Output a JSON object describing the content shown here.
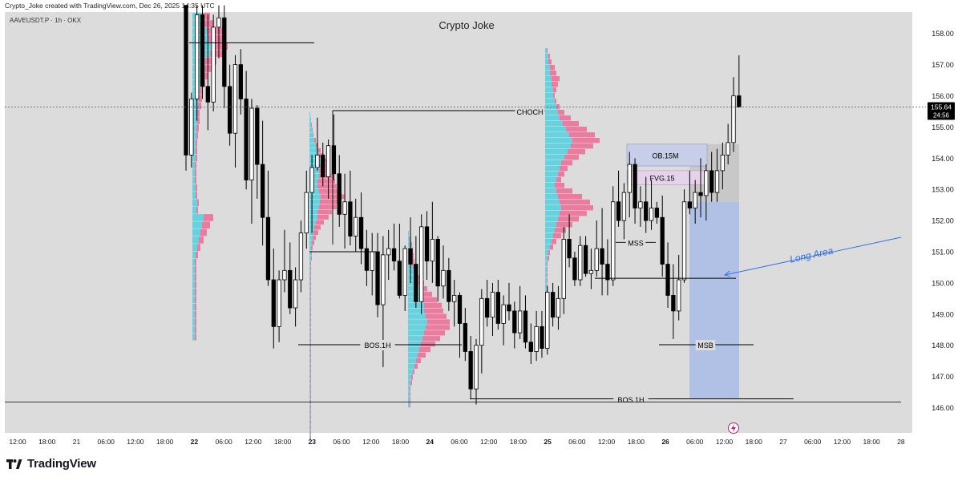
{
  "header": {
    "credit": "Crypto_Joke created with TradingView.com, Dec 26, 2025 14:35 UTC",
    "symbol": "AAVEUSDT.P · 1h · OKX",
    "watermark": "Crypto Joke"
  },
  "footer": {
    "brand": "TradingView"
  },
  "price_tag": {
    "price": "155.64",
    "countdown": "24:56"
  },
  "colors": {
    "bull": "#ffffff",
    "bear": "#000000",
    "chart_bg": "#dcdcdc",
    "vp_up": "#4fd0df",
    "vp_down": "#ef6b94",
    "long_area": "#a9bce8",
    "long_text": "#2f6fe0",
    "ob_box": "#c7cfe8",
    "fvg_box": "#e6d2ea"
  },
  "icons": [
    "tradingview-logo-icon",
    "lightning-icon"
  ],
  "chart_data": {
    "type": "candlestick",
    "title": "Crypto Joke",
    "symbol": "AAVEUSDT.P · 1h · OKX",
    "xlabel": "",
    "ylabel": "",
    "ylim": [
      145.2,
      158.6
    ],
    "y_ticks": [
      146,
      147,
      148,
      149,
      150,
      151,
      152,
      153,
      154,
      155,
      156,
      157,
      158
    ],
    "y_tick_labels": [
      "146.00",
      "147.00",
      "148.00",
      "149.00",
      "150.00",
      "151.00",
      "152.00",
      "153.00",
      "154.00",
      "155.00",
      "156.00",
      "157.00",
      "158.00"
    ],
    "x_tick_labels": [
      "12:00",
      "18:00",
      "21",
      "06:00",
      "12:00",
      "18:00",
      "22",
      "06:00",
      "12:00",
      "18:00",
      "23",
      "06:00",
      "12:00",
      "18:00",
      "24",
      "06:00",
      "12:00",
      "18:00",
      "25",
      "06:00",
      "12:00",
      "18:00",
      "26",
      "06:00",
      "12:00",
      "18:00",
      "27",
      "06:00",
      "12:00",
      "18:00",
      "28"
    ],
    "x_bold_labels": [
      "22",
      "23",
      "24",
      "25",
      "26"
    ],
    "last_price": 155.64,
    "candles": [
      [
        158.9,
        158.9,
        153.6,
        154.1
      ],
      [
        154.1,
        156.1,
        153.7,
        155.9
      ],
      [
        155.9,
        158.9,
        155.2,
        158.6
      ],
      [
        158.6,
        158.9,
        155.9,
        156.3
      ],
      [
        156.3,
        158.6,
        154.9,
        155.8
      ],
      [
        155.8,
        158.6,
        155.5,
        158.2
      ],
      [
        158.2,
        158.9,
        157.2,
        158.5
      ],
      [
        158.5,
        158.9,
        155.6,
        156.3
      ],
      [
        156.3,
        157.0,
        154.4,
        154.8
      ],
      [
        154.8,
        157.3,
        153.7,
        157.0
      ],
      [
        157.0,
        157.5,
        155.4,
        155.9
      ],
      [
        155.9,
        156.8,
        153.0,
        153.3
      ],
      [
        153.3,
        155.9,
        151.9,
        155.6
      ],
      [
        155.6,
        155.7,
        152.7,
        153.8
      ],
      [
        153.8,
        155.2,
        151.2,
        152.1
      ],
      [
        152.1,
        153.6,
        149.9,
        150.1
      ],
      [
        150.1,
        151.1,
        147.9,
        148.6
      ],
      [
        148.6,
        150.4,
        148.1,
        150.1
      ],
      [
        150.1,
        151.7,
        149.7,
        150.4
      ],
      [
        150.4,
        151.3,
        149.0,
        149.2
      ],
      [
        149.2,
        150.5,
        148.6,
        150.1
      ],
      [
        150.1,
        152.0,
        149.7,
        151.6
      ],
      [
        151.6,
        153.6,
        151.1,
        152.9
      ],
      [
        152.9,
        154.1,
        151.6,
        153.7
      ],
      [
        153.7,
        155.3,
        153.6,
        154.1
      ],
      [
        154.1,
        154.5,
        153.1,
        153.4
      ],
      [
        153.4,
        154.6,
        152.7,
        154.4
      ],
      [
        154.4,
        155.4,
        153.3,
        153.5
      ],
      [
        153.5,
        154.1,
        151.8,
        152.2
      ],
      [
        152.2,
        153.5,
        151.1,
        152.6
      ],
      [
        152.6,
        153.6,
        151.2,
        151.5
      ],
      [
        151.5,
        152.7,
        151.0,
        152.1
      ],
      [
        152.1,
        152.9,
        150.6,
        151.1
      ],
      [
        151.1,
        151.7,
        149.9,
        150.4
      ],
      [
        150.4,
        151.6,
        149.6,
        151.0
      ],
      [
        151.0,
        151.6,
        148.9,
        149.3
      ],
      [
        149.3,
        151.5,
        147.3,
        150.9
      ],
      [
        150.9,
        151.7,
        150.1,
        151.1
      ],
      [
        151.1,
        151.9,
        150.4,
        150.7
      ],
      [
        150.7,
        151.9,
        149.5,
        149.6
      ],
      [
        149.6,
        151.2,
        149.1,
        151.1
      ],
      [
        151.1,
        152.1,
        150.0,
        150.6
      ],
      [
        150.6,
        151.5,
        149.2,
        149.4
      ],
      [
        149.4,
        152.2,
        149.0,
        151.8
      ],
      [
        151.8,
        152.3,
        150.1,
        150.7
      ],
      [
        150.7,
        152.6,
        150.0,
        151.4
      ],
      [
        151.4,
        151.5,
        149.4,
        149.9
      ],
      [
        149.9,
        151.2,
        149.5,
        150.4
      ],
      [
        150.4,
        150.8,
        149.1,
        149.4
      ],
      [
        149.4,
        150.1,
        148.6,
        149.6
      ],
      [
        149.6,
        149.7,
        147.6,
        148.7
      ],
      [
        148.7,
        149.2,
        147.5,
        147.8
      ],
      [
        147.8,
        148.3,
        146.3,
        146.6
      ],
      [
        146.6,
        148.2,
        146.1,
        148.0
      ],
      [
        148.0,
        149.8,
        147.1,
        149.5
      ],
      [
        149.5,
        150.1,
        148.6,
        148.9
      ],
      [
        148.9,
        150.0,
        148.3,
        149.7
      ],
      [
        149.7,
        150.1,
        148.5,
        148.7
      ],
      [
        148.7,
        149.6,
        148.0,
        149.3
      ],
      [
        149.3,
        150.0,
        148.8,
        149.1
      ],
      [
        149.1,
        149.4,
        147.9,
        148.4
      ],
      [
        148.4,
        149.9,
        148.2,
        149.1
      ],
      [
        149.1,
        149.6,
        147.9,
        148.1
      ],
      [
        148.1,
        148.7,
        147.4,
        147.8
      ],
      [
        147.8,
        149.1,
        147.5,
        148.6
      ],
      [
        148.6,
        149.1,
        147.6,
        147.9
      ],
      [
        147.9,
        149.9,
        147.7,
        149.7
      ],
      [
        149.7,
        150.0,
        148.6,
        148.9
      ],
      [
        148.9,
        149.9,
        148.5,
        149.5
      ],
      [
        149.5,
        151.8,
        149.0,
        151.4
      ],
      [
        151.4,
        152.2,
        150.5,
        150.8
      ],
      [
        150.8,
        151.0,
        149.9,
        150.1
      ],
      [
        150.1,
        151.5,
        149.9,
        151.2
      ],
      [
        151.2,
        151.5,
        150.2,
        150.3
      ],
      [
        150.3,
        151.1,
        149.8,
        150.4
      ],
      [
        150.4,
        152.0,
        150.2,
        151.1
      ],
      [
        151.1,
        152.4,
        149.6,
        150.6
      ],
      [
        150.6,
        151.4,
        149.6,
        150.1
      ],
      [
        150.1,
        153.1,
        149.9,
        152.6
      ],
      [
        152.6,
        153.6,
        151.8,
        152.0
      ],
      [
        152.0,
        153.2,
        151.4,
        152.9
      ],
      [
        152.9,
        154.2,
        152.1,
        153.8
      ],
      [
        153.8,
        154.0,
        151.9,
        152.4
      ],
      [
        152.4,
        153.1,
        151.8,
        152.6
      ],
      [
        152.6,
        153.4,
        151.6,
        152.0
      ],
      [
        152.0,
        153.3,
        151.7,
        152.4
      ],
      [
        152.4,
        152.6,
        151.9,
        152.1
      ],
      [
        152.1,
        152.8,
        150.2,
        150.6
      ],
      [
        150.6,
        151.3,
        149.2,
        149.6
      ],
      [
        149.6,
        150.6,
        148.2,
        149.1
      ],
      [
        149.1,
        150.9,
        148.8,
        150.1
      ],
      [
        150.1,
        153.0,
        150.0,
        152.6
      ],
      [
        152.6,
        153.6,
        152.2,
        152.4
      ],
      [
        152.4,
        153.3,
        151.9,
        152.9
      ],
      [
        152.9,
        154.0,
        152.1,
        152.8
      ],
      [
        152.8,
        153.8,
        152.0,
        153.6
      ],
      [
        153.6,
        154.2,
        152.6,
        152.9
      ],
      [
        152.9,
        154.3,
        152.6,
        153.6
      ],
      [
        153.6,
        154.5,
        153.0,
        154.1
      ],
      [
        154.1,
        155.1,
        153.8,
        154.5
      ],
      [
        154.5,
        156.6,
        154.2,
        156.0
      ],
      [
        156.0,
        157.3,
        155.7,
        155.64
      ]
    ],
    "annotations": [
      "CHOCH",
      "BOS.1H",
      "BOS.1H",
      "MSS",
      "MSB",
      "OB.15M",
      "FVG.15",
      "Long Area"
    ],
    "levels": [
      {
        "label": "CHOCH",
        "price": 155.55
      },
      {
        "label": "BOS.1H",
        "price": 148.05
      },
      {
        "label": "BOS.1H",
        "price": 146.3
      },
      {
        "label": "MSS",
        "price": 151.3
      },
      {
        "label": "MSB",
        "price": 148.1
      },
      {
        "label": "",
        "price": 157.7
      },
      {
        "label": "",
        "price": 151.0
      },
      {
        "label": "",
        "price": 150.15
      }
    ],
    "zones": [
      {
        "label": "OB.15M",
        "from": 153.75,
        "to": 154.45
      },
      {
        "label": "FVG.15",
        "from": 153.15,
        "to": 153.6
      },
      {
        "label": "",
        "from": 152.6,
        "to": 154.45
      },
      {
        "label": "Long Area",
        "from": 146.3,
        "to": 152.6
      }
    ]
  }
}
